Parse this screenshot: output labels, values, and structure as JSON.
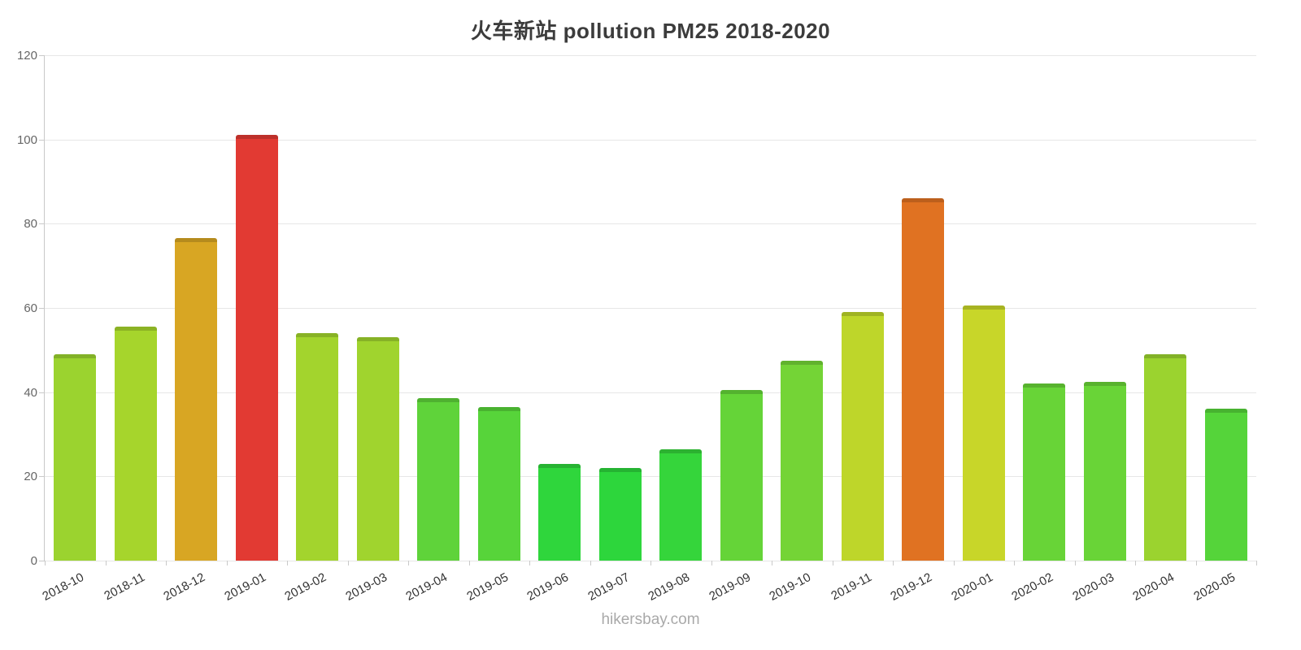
{
  "chart_data": {
    "type": "bar",
    "title": "火车新站 pollution PM25 2018-2020",
    "footer": "hikersbay.com",
    "xlabel": "",
    "ylabel": "",
    "ylim": [
      0,
      120
    ],
    "ytick_step": 20,
    "grid": true,
    "legend": "none",
    "categories": [
      "2018-10",
      "2018-11",
      "2018-12",
      "2019-01",
      "2019-02",
      "2019-03",
      "2019-04",
      "2019-05",
      "2019-06",
      "2019-07",
      "2019-08",
      "2019-09",
      "2019-10",
      "2019-11",
      "2019-12",
      "2020-01",
      "2020-02",
      "2020-03",
      "2020-04",
      "2020-05"
    ],
    "values": [
      49,
      55.5,
      76.5,
      101,
      54,
      53,
      38.5,
      36.5,
      23,
      22,
      26.5,
      40.5,
      47.5,
      59,
      86,
      60.5,
      42,
      42.5,
      49,
      36
    ],
    "bar_colors": [
      "#9bd32f",
      "#a6d52c",
      "#d8a623",
      "#e23a33",
      "#a3d42d",
      "#a0d42e",
      "#5fd33a",
      "#57d43a",
      "#2fd63c",
      "#2dd63c",
      "#35d53b",
      "#65d438",
      "#74d436",
      "#bed62a",
      "#e07222",
      "#c8d629",
      "#68d437",
      "#69d437",
      "#9bd32f",
      "#55d43a"
    ],
    "axis_color": "#c9c9c9",
    "grid_color": "#e6e6e6",
    "y_label_color": "#666666",
    "x_label_color": "#333333"
  }
}
